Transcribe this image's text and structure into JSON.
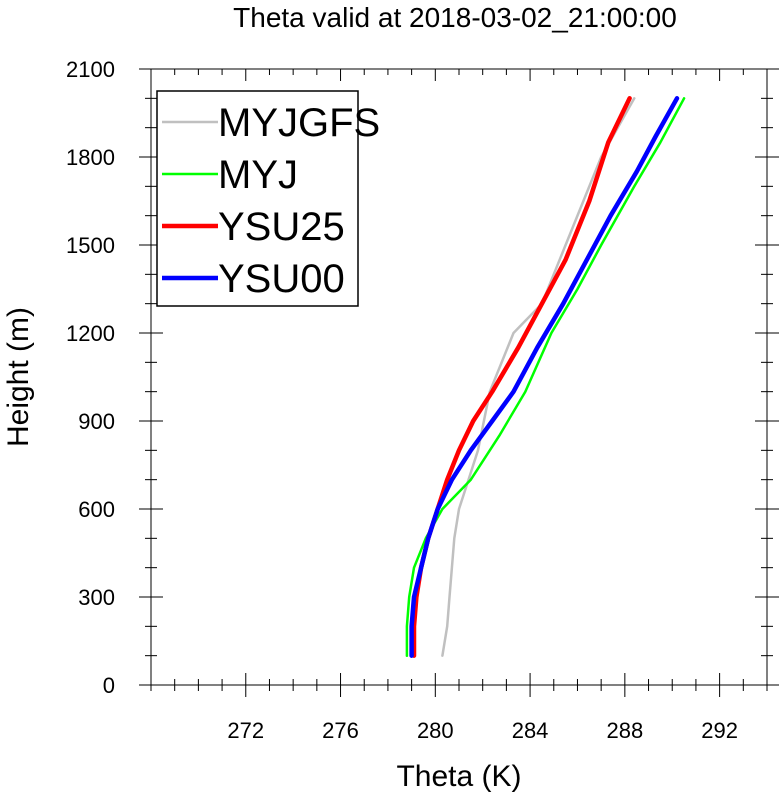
{
  "chart_data": {
    "type": "line",
    "title": "Theta valid at 2018-03-02_21:00:00",
    "xlabel": "Theta (K)",
    "ylabel": "Height (m)",
    "xlim": [
      268,
      294
    ],
    "ylim": [
      0,
      2100
    ],
    "x_ticks": [
      "272",
      "276",
      "280",
      "284",
      "288",
      "292"
    ],
    "y_ticks": [
      "0",
      "300",
      "600",
      "900",
      "1200",
      "1500",
      "1800",
      "2100"
    ],
    "legend_position": "top-left",
    "grid": false,
    "series": [
      {
        "name": "MYJGFS",
        "color": "#c0c0c0",
        "width": "thin",
        "points": [
          [
            280.3,
            100
          ],
          [
            280.5,
            200
          ],
          [
            280.6,
            300
          ],
          [
            280.7,
            400
          ],
          [
            280.8,
            500
          ],
          [
            281.0,
            600
          ],
          [
            281.4,
            700
          ],
          [
            281.8,
            800
          ],
          [
            282.3,
            1000
          ],
          [
            283.3,
            1200
          ],
          [
            284.5,
            1300
          ],
          [
            285.5,
            1500
          ],
          [
            287.0,
            1800
          ],
          [
            288.4,
            2000
          ]
        ]
      },
      {
        "name": "MYJ",
        "color": "#00ff00",
        "width": "thin",
        "points": [
          [
            278.8,
            100
          ],
          [
            278.8,
            200
          ],
          [
            278.9,
            300
          ],
          [
            279.1,
            400
          ],
          [
            279.6,
            500
          ],
          [
            280.3,
            600
          ],
          [
            281.5,
            700
          ],
          [
            282.7,
            850
          ],
          [
            283.8,
            1000
          ],
          [
            284.9,
            1200
          ],
          [
            286.0,
            1350
          ],
          [
            287.0,
            1500
          ],
          [
            288.4,
            1700
          ],
          [
            289.5,
            1850
          ],
          [
            290.5,
            2000
          ]
        ]
      },
      {
        "name": "YSU25",
        "color": "#ff0000",
        "width": "thick",
        "points": [
          [
            279.1,
            100
          ],
          [
            279.1,
            200
          ],
          [
            279.2,
            300
          ],
          [
            279.4,
            400
          ],
          [
            279.7,
            500
          ],
          [
            280.1,
            600
          ],
          [
            280.5,
            700
          ],
          [
            281.0,
            800
          ],
          [
            281.6,
            900
          ],
          [
            282.4,
            1000
          ],
          [
            283.5,
            1150
          ],
          [
            284.5,
            1300
          ],
          [
            285.5,
            1450
          ],
          [
            286.5,
            1650
          ],
          [
            287.3,
            1850
          ],
          [
            288.2,
            2000
          ]
        ]
      },
      {
        "name": "YSU00",
        "color": "#0000ff",
        "width": "thick",
        "points": [
          [
            279.0,
            100
          ],
          [
            279.0,
            200
          ],
          [
            279.1,
            300
          ],
          [
            279.4,
            400
          ],
          [
            279.7,
            500
          ],
          [
            280.1,
            600
          ],
          [
            280.7,
            700
          ],
          [
            281.5,
            800
          ],
          [
            282.4,
            900
          ],
          [
            283.3,
            1000
          ],
          [
            284.3,
            1150
          ],
          [
            285.4,
            1300
          ],
          [
            286.4,
            1450
          ],
          [
            287.4,
            1600
          ],
          [
            288.5,
            1750
          ],
          [
            289.3,
            1870
          ],
          [
            290.2,
            2000
          ]
        ]
      }
    ]
  }
}
